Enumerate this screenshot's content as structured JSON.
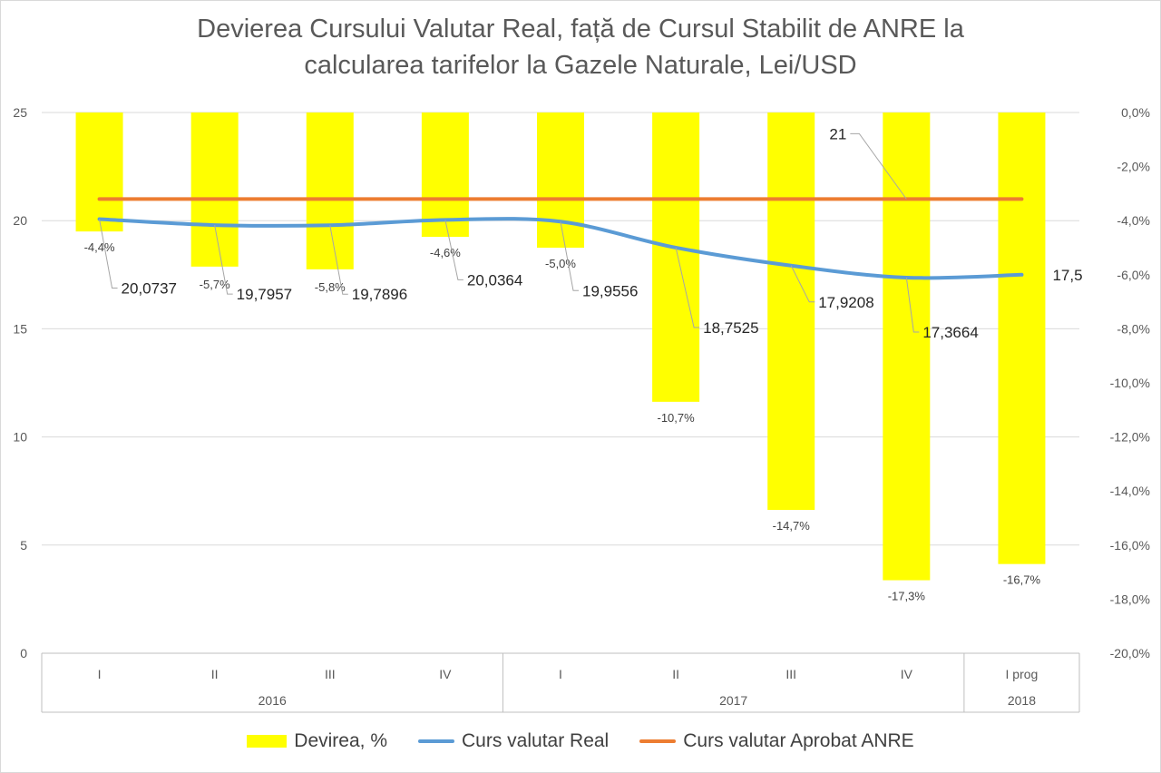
{
  "title_lines": [
    "Devierea Cursului Valutar Real, față de Cursul Stabilit de ANRE la",
    "calcularea tarifelor la Gazele Naturale, Lei/USD"
  ],
  "chart_data": {
    "type": "bar+line",
    "title": "Devierea Cursului Valutar Real, față de Cursul Stabilit de ANRE la calcularea tarifelor la Gazele Naturale, Lei/USD",
    "categories": [
      "I",
      "II",
      "III",
      "IV",
      "I",
      "II",
      "III",
      "IV",
      "I prog"
    ],
    "groups": [
      {
        "label": "2016",
        "count": 4
      },
      {
        "label": "2017",
        "count": 4
      },
      {
        "label": "2018",
        "count": 1
      }
    ],
    "y_left": {
      "min": 0,
      "max": 25,
      "ticks": [
        "0",
        "5",
        "10",
        "15",
        "20",
        "25"
      ]
    },
    "y_right": {
      "min": -20,
      "max": 0,
      "ticks": [
        "0,0%",
        "-2,0%",
        "-4,0%",
        "-6,0%",
        "-8,0%",
        "-10,0%",
        "-12,0%",
        "-14,0%",
        "-16,0%",
        "-18,0%",
        "-20,0%"
      ]
    },
    "series": [
      {
        "name": "Devirea, %",
        "type": "bar",
        "axis": "right",
        "color": "#ffff00",
        "values": [
          -4.4,
          -5.7,
          -5.8,
          -4.6,
          -5.0,
          -10.7,
          -14.7,
          -17.3,
          -16.7
        ],
        "labels": [
          "-4,4%",
          "-5,7%",
          "-5,8%",
          "-4,6%",
          "-5,0%",
          "-10,7%",
          "-14,7%",
          "-17,3%",
          "-16,7%"
        ]
      },
      {
        "name": "Curs valutar Real",
        "type": "line",
        "axis": "left",
        "color": "#5b9bd5",
        "values": [
          20.0737,
          19.7957,
          19.7896,
          20.0364,
          19.9556,
          18.7525,
          17.9208,
          17.3664,
          17.5
        ],
        "labels": [
          "20,0737",
          "19,7957",
          "19,7896",
          "20,0364",
          "19,9556",
          "18,7525",
          "17,9208",
          "17,3664",
          "17,5"
        ]
      },
      {
        "name": "Curs valutar Aprobat ANRE",
        "type": "line",
        "axis": "left",
        "color": "#ed7d31",
        "values": [
          21,
          21,
          21,
          21,
          21,
          21,
          21,
          21,
          21
        ],
        "label": "21"
      }
    ],
    "grid": true,
    "legend": "bottom"
  }
}
